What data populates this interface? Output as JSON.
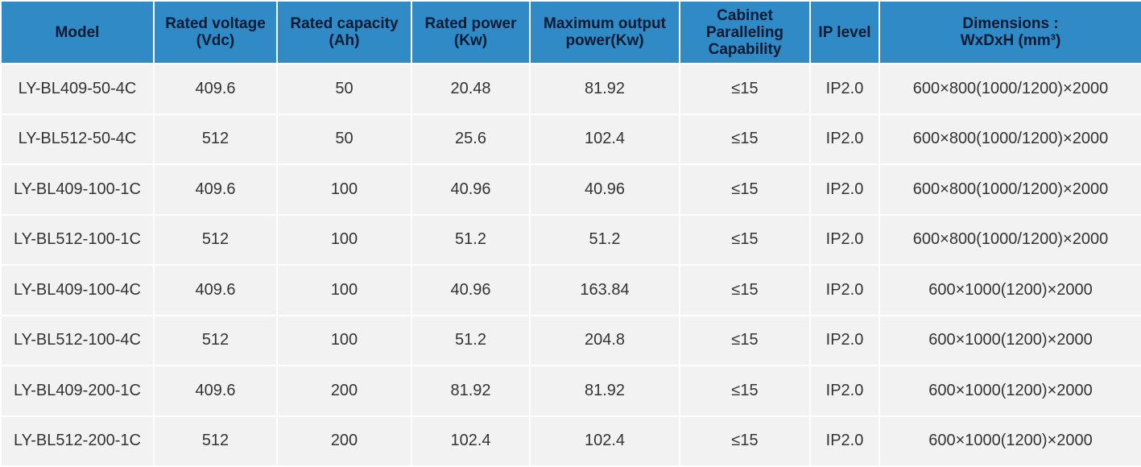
{
  "table": {
    "header": [
      [
        "Model"
      ],
      [
        "Rated voltage",
        "(Vdc)"
      ],
      [
        "Rated capacity",
        "(Ah)"
      ],
      [
        "Rated power",
        "(Kw)"
      ],
      [
        "Maximum output",
        "power(Kw)"
      ],
      [
        "Cabinet",
        "Paralleling",
        "Capability"
      ],
      [
        "IP level"
      ],
      [
        "Dimensions :",
        "WxDxH (mm³)"
      ]
    ],
    "rows": [
      [
        "LY-BL409-50-4C",
        "409.6",
        "50",
        "20.48",
        "81.92",
        "≤15",
        "IP2.0",
        "600×800(1000/1200)×2000"
      ],
      [
        "LY-BL512-50-4C",
        "512",
        "50",
        "25.6",
        "102.4",
        "≤15",
        "IP2.0",
        "600×800(1000/1200)×2000"
      ],
      [
        "LY-BL409-100-1C",
        "409.6",
        "100",
        "40.96",
        "40.96",
        "≤15",
        "IP2.0",
        "600×800(1000/1200)×2000"
      ],
      [
        "LY-BL512-100-1C",
        "512",
        "100",
        "51.2",
        "51.2",
        "≤15",
        "IP2.0",
        "600×800(1000/1200)×2000"
      ],
      [
        "LY-BL409-100-4C",
        "409.6",
        "100",
        "40.96",
        "163.84",
        "≤15",
        "IP2.0",
        "600×1000(1200)×2000"
      ],
      [
        "LY-BL512-100-4C",
        "512",
        "100",
        "51.2",
        "204.8",
        "≤15",
        "IP2.0",
        "600×1000(1200)×2000"
      ],
      [
        "LY-BL409-200-1C",
        "409.6",
        "200",
        "81.92",
        "81.92",
        "≤15",
        "IP2.0",
        "600×1000(1200)×2000"
      ],
      [
        "LY-BL512-200-1C",
        "512",
        "200",
        "102.4",
        "102.4",
        "≤15",
        "IP2.0",
        "600×1000(1200)×2000"
      ]
    ]
  }
}
